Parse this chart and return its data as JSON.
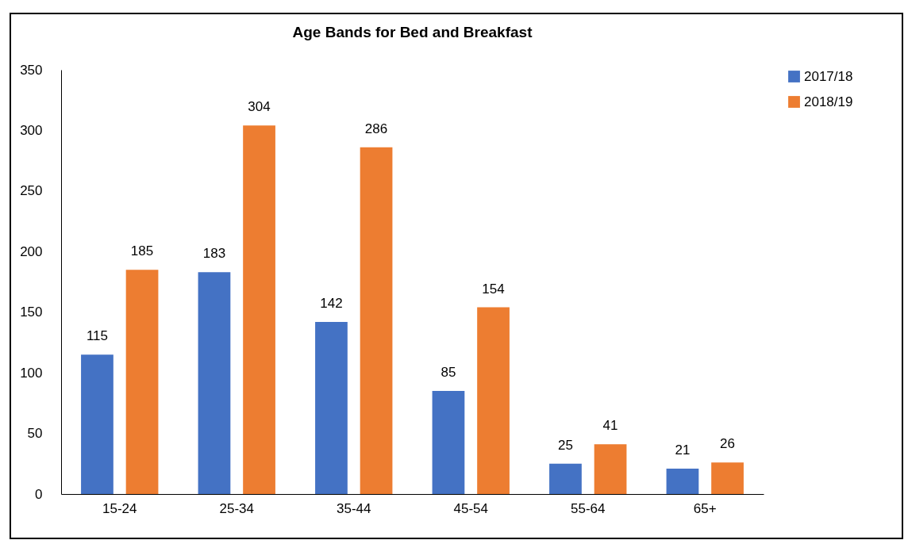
{
  "chart_data": {
    "type": "bar",
    "title": "Age Bands for Bed and Breakfast",
    "categories": [
      "15-24",
      "25-34",
      "35-44",
      "45-54",
      "55-64",
      "65+"
    ],
    "series": [
      {
        "name": "2017/18",
        "color": "#4472c4",
        "values": [
          115,
          183,
          142,
          85,
          25,
          21
        ]
      },
      {
        "name": "2018/19",
        "color": "#ed7d31",
        "values": [
          185,
          304,
          286,
          154,
          41,
          26
        ]
      }
    ],
    "ylim": [
      0,
      350
    ],
    "yticks": [
      0,
      50,
      100,
      150,
      200,
      250,
      300,
      350
    ],
    "grid": false,
    "legend": "right",
    "data_labels": true
  }
}
